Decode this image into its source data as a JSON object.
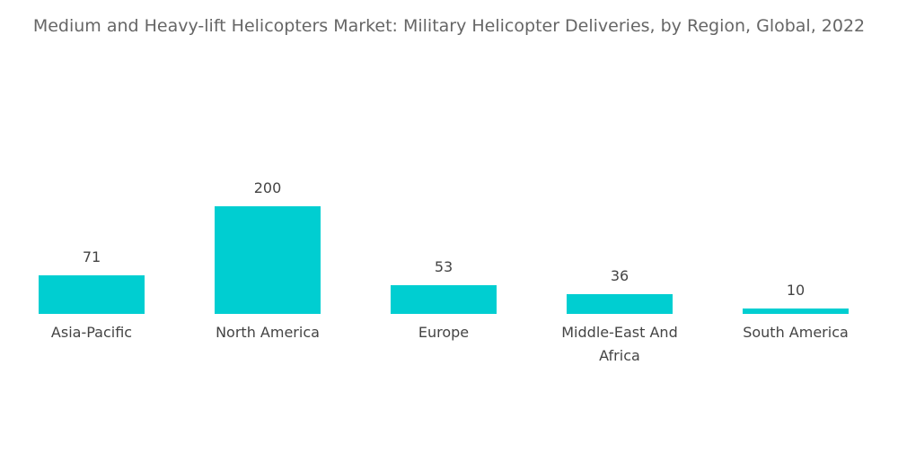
{
  "chart_data": {
    "type": "bar",
    "title": "Medium and Heavy-lift Helicopters Market: Military Helicopter Deliveries, by Region, Global, 2022",
    "categories": [
      "Asia-Pacific",
      "North America",
      "Europe",
      "Middle-East And Africa",
      "South America"
    ],
    "values": [
      71,
      200,
      53,
      36,
      10
    ],
    "color": "#00ced1"
  }
}
